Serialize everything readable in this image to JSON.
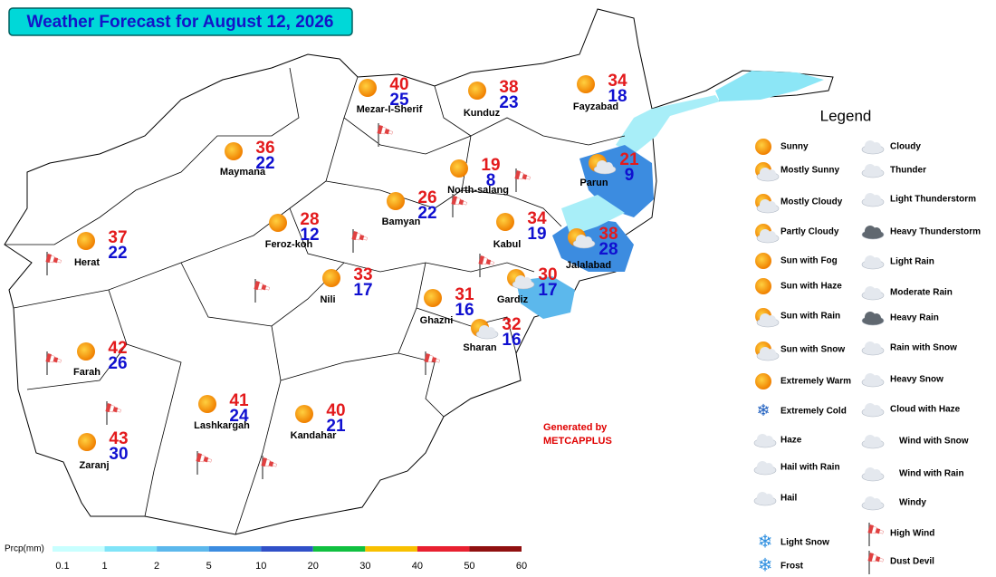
{
  "title": "Weather Forecast for August 12, 2026",
  "cities": [
    {
      "name": "Mezar-I-Sherif",
      "max": 40,
      "min": 25
    },
    {
      "name": "Kunduz",
      "max": 38,
      "min": 23
    },
    {
      "name": "Fayzabad",
      "max": 34,
      "min": 18
    },
    {
      "name": "Maymana",
      "max": 36,
      "min": 22
    },
    {
      "name": "North-salang",
      "max": 19,
      "min": 8
    },
    {
      "name": "Parun",
      "max": 21,
      "min": 9
    },
    {
      "name": "Bamyan",
      "max": 26,
      "min": 22
    },
    {
      "name": "Feroz-koh",
      "max": 28,
      "min": 12
    },
    {
      "name": "Kabul",
      "max": 34,
      "min": 19
    },
    {
      "name": "Jalalabad",
      "max": 38,
      "min": 28
    },
    {
      "name": "Herat",
      "max": 37,
      "min": 22
    },
    {
      "name": "Nili",
      "max": 33,
      "min": 17
    },
    {
      "name": "Gardiz",
      "max": 30,
      "min": 17
    },
    {
      "name": "Ghazni",
      "max": 31,
      "min": 16
    },
    {
      "name": "Sharan",
      "max": 32,
      "min": 16
    },
    {
      "name": "Farah",
      "max": 42,
      "min": 26
    },
    {
      "name": "Lashkargah",
      "max": 41,
      "min": 24
    },
    {
      "name": "Kandahar",
      "max": 40,
      "min": 21
    },
    {
      "name": "Zaranj",
      "max": 43,
      "min": 30
    }
  ],
  "legend": {
    "title": "Legend",
    "left": [
      "Sunny",
      "Mostly Sunny",
      "Mostly Cloudy",
      "Partly Cloudy",
      "Sun with Fog",
      "Sun with Haze",
      "Sun with Rain",
      "Sun with Snow",
      "Extremely Warm",
      "Extremely Cold",
      "Haze",
      "Hail with Rain",
      "Hail",
      "Light Snow",
      "Frost"
    ],
    "right": [
      "Cloudy",
      "Thunder",
      "Light Thunderstorm",
      "Heavy Thunderstorm",
      "Light Rain",
      "Moderate Rain",
      "Heavy Rain",
      "Rain with Snow",
      "Heavy Snow",
      "Cloud with Haze",
      "Wind with Snow",
      "Wind with Rain",
      "Windy",
      "High Wind",
      "Dust Devil"
    ]
  },
  "credit": [
    "Generated by",
    "METCAPPLUS"
  ],
  "colorbar": {
    "label": "Prcp(mm)",
    "ticks": [
      0.1,
      1,
      2,
      5,
      10,
      20,
      30,
      40,
      50,
      60
    ],
    "colors": [
      "#c8ffff",
      "#80e4f8",
      "#5cb8ec",
      "#3c8ce0",
      "#3050c8",
      "#10c040",
      "#f8c000",
      "#e82030",
      "#901010"
    ]
  }
}
